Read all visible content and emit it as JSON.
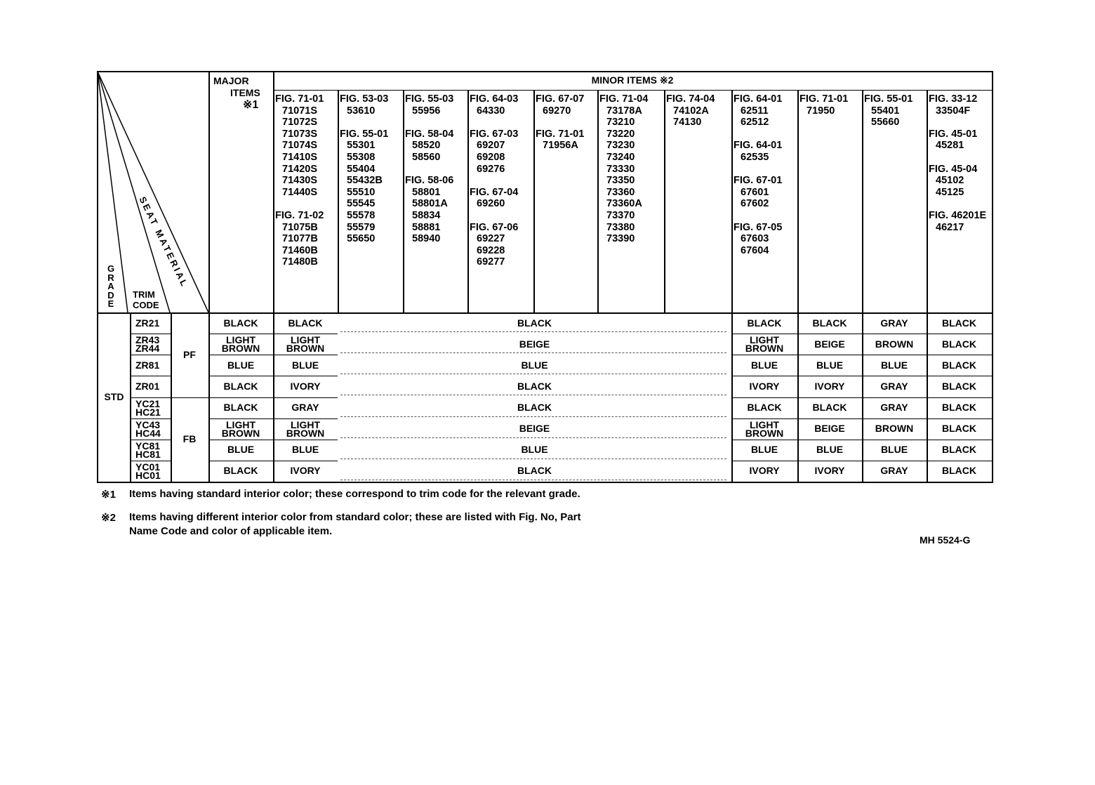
{
  "header": {
    "grade_label": "GRADE",
    "trim_code_label": [
      "TRIM",
      "CODE"
    ],
    "seat_material_label": "SEAT MATERIAL",
    "major_items_label": [
      "MAJOR",
      "ITEMS",
      "※1"
    ],
    "minor_items_label": "MINOR ITEMS ※2"
  },
  "minor_columns": [
    {
      "lines": [
        "FIG. 71-01",
        "71071S",
        "71072S",
        "71073S",
        "71074S",
        "71410S",
        "71420S",
        "71430S",
        "71440S",
        "",
        "FIG. 71-02",
        "71075B",
        "71077B",
        "71460B",
        "71480B"
      ]
    },
    {
      "lines": [
        "FIG. 53-03",
        "53610",
        "",
        "FIG. 55-01",
        "55301",
        "55308",
        "55404",
        "55432B",
        "55510",
        "55545",
        "55578",
        "55579",
        "55650"
      ]
    },
    {
      "lines": [
        "FIG. 55-03",
        "55956",
        "",
        "FIG. 58-04",
        "58520",
        "58560",
        "",
        "FIG. 58-06",
        "58801",
        "58801A",
        "58834",
        "58881",
        "58940"
      ]
    },
    {
      "lines": [
        "FIG. 64-03",
        "64330",
        "",
        "FIG. 67-03",
        "69207",
        "69208",
        "69276",
        "",
        "FIG. 67-04",
        "69260",
        "",
        "FIG. 67-06",
        "69227",
        "69228",
        "69277"
      ]
    },
    {
      "lines": [
        "FIG. 67-07",
        "69270",
        "",
        "FIG. 71-01",
        "71956A"
      ]
    },
    {
      "lines": [
        "FIG. 71-04",
        "73178A",
        "73210",
        "73220",
        "73230",
        "73240",
        "73330",
        "73350",
        "73360",
        "73360A",
        "73370",
        "73380",
        "73390"
      ]
    },
    {
      "lines": [
        "FIG. 74-04",
        "74102A",
        "74130"
      ]
    },
    {
      "lines": [
        "FIG. 64-01",
        "62511",
        "62512",
        "",
        "FIG. 64-01",
        "62535",
        "",
        "FIG. 67-01",
        "67601",
        "67602",
        "",
        "FIG. 67-05",
        "67603",
        "67604"
      ]
    },
    {
      "lines": [
        "FIG. 71-01",
        "71950"
      ]
    },
    {
      "lines": [
        "FIG. 55-01",
        "55401",
        "55660"
      ]
    },
    {
      "lines": [
        "FIG. 33-12",
        "33504F",
        "",
        "FIG. 45-01",
        "45281",
        "",
        "FIG. 45-04",
        "45102",
        "45125",
        "",
        "FIG. 46201E",
        "46217"
      ]
    }
  ],
  "grade": "STD",
  "seat_materials": [
    "PF",
    "FB"
  ],
  "rows": [
    {
      "trim": [
        "ZR21"
      ],
      "major": "BLACK",
      "c1": "BLACK",
      "mid": "BLACK",
      "c8": "BLACK",
      "c9": "BLACK",
      "c10": "GRAY",
      "c11": "BLACK"
    },
    {
      "trim": [
        "ZR43",
        "ZR44"
      ],
      "major": "LIGHT BROWN",
      "c1": "LIGHT BROWN",
      "mid": "BEIGE",
      "c8": "LIGHT BROWN",
      "c9": "BEIGE",
      "c10": "BROWN",
      "c11": "BLACK"
    },
    {
      "trim": [
        "ZR81"
      ],
      "major": "BLUE",
      "c1": "BLUE",
      "mid": "BLUE",
      "c8": "BLUE",
      "c9": "BLUE",
      "c10": "BLUE",
      "c11": "BLACK"
    },
    {
      "trim": [
        "ZR01"
      ],
      "major": "BLACK",
      "c1": "IVORY",
      "mid": "BLACK",
      "c8": "IVORY",
      "c9": "IVORY",
      "c10": "GRAY",
      "c11": "BLACK"
    },
    {
      "trim": [
        "YC21",
        "HC21"
      ],
      "major": "BLACK",
      "c1": "GRAY",
      "mid": "BLACK",
      "c8": "BLACK",
      "c9": "BLACK",
      "c10": "GRAY",
      "c11": "BLACK"
    },
    {
      "trim": [
        "YC43",
        "HC44"
      ],
      "major": "LIGHT BROWN",
      "c1": "LIGHT BROWN",
      "mid": "BEIGE",
      "c8": "LIGHT BROWN",
      "c9": "BEIGE",
      "c10": "BROWN",
      "c11": "BLACK"
    },
    {
      "trim": [
        "YC81",
        "HC81"
      ],
      "major": "BLUE",
      "c1": "BLUE",
      "mid": "BLUE",
      "c8": "BLUE",
      "c9": "BLUE",
      "c10": "BLUE",
      "c11": "BLACK"
    },
    {
      "trim": [
        "YC01",
        "HC01"
      ],
      "major": "BLACK",
      "c1": "IVORY",
      "mid": "BLACK",
      "c8": "IVORY",
      "c9": "IVORY",
      "c10": "GRAY",
      "c11": "BLACK"
    }
  ],
  "footnotes": [
    {
      "mark": "※1",
      "text": "Items having standard interior color; these correspond to trim code for the relevant grade."
    },
    {
      "mark": "※2",
      "text": "Items having different interior color from standard color; these are listed with Fig. No, Part",
      "text2": "Name Code and color of applicable item."
    }
  ],
  "doc_code": "MH 5524-G"
}
